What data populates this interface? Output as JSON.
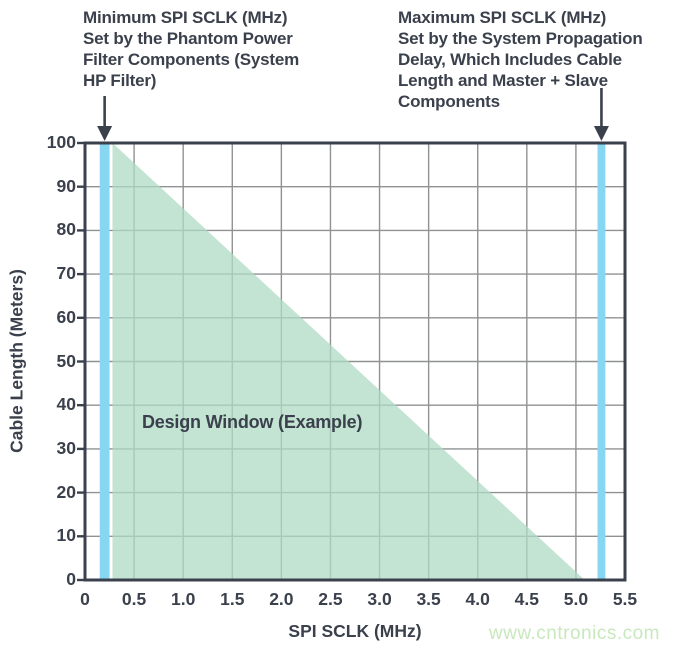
{
  "annotations": {
    "left": {
      "text": "Minimum SPI SCLK (MHz)\nSet by the Phantom Power\nFilter Components (System\nHP Filter)"
    },
    "right": {
      "text": "Maximum SPI SCLK (MHz)\nSet by the System Propagation\nDelay, Which Includes Cable\nLength and Master + Slave\nComponents"
    }
  },
  "watermark": "www.cntronics.com",
  "chart_data": {
    "type": "area",
    "title": "",
    "xlabel": "SPI SCLK (MHz)",
    "ylabel": "Cable Length (Meters)",
    "xlim": [
      0,
      5.5
    ],
    "ylim": [
      0,
      100
    ],
    "grid": true,
    "x_ticks": {
      "values": [
        0,
        0.5,
        1.0,
        1.5,
        2.0,
        2.5,
        3.0,
        3.5,
        4.0,
        4.5,
        5.0,
        5.5
      ],
      "labels": [
        "0",
        "0.5",
        "1.0",
        "1.5",
        "2.0",
        "2.5",
        "3.0",
        "3.5",
        "4.0",
        "4.5",
        "5.0",
        "5.5"
      ]
    },
    "y_ticks": {
      "values": [
        0,
        10,
        20,
        30,
        40,
        50,
        60,
        70,
        80,
        90,
        100
      ],
      "labels": [
        "0",
        "10",
        "20",
        "30",
        "40",
        "50",
        "60",
        "70",
        "80",
        "90",
        "100"
      ]
    },
    "design_window": {
      "label": "Design Window (Example)",
      "vertices": [
        [
          0.28,
          100
        ],
        [
          0.28,
          0
        ],
        [
          5.09,
          0
        ]
      ]
    },
    "bands": [
      {
        "name": "min-spi-sclk-limit",
        "x": 0.2,
        "width": 0.1
      },
      {
        "name": "max-spi-sclk-limit",
        "x": 5.26,
        "width": 0.08
      }
    ],
    "colors": {
      "window_fill": "#AFDAC4",
      "band_fill": "#87D7F3",
      "grid": "#8F9193",
      "axis": "#3B414C",
      "text": "#3B414C",
      "watermark": "#C8E8BD",
      "background": "#FFFFFF"
    }
  }
}
